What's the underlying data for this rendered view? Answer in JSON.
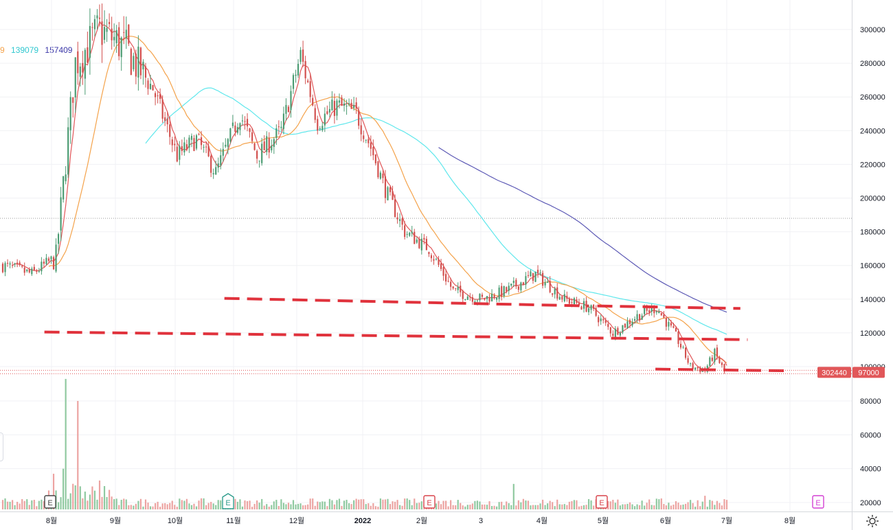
{
  "colors": {
    "up": "#26a69a",
    "down": "#ef5350",
    "up_body": "#4c9c73",
    "down_body": "#d2504e",
    "vol_up": "#8fc9a0",
    "vol_down": "#eca3a1",
    "ma_short": "#e15759",
    "ma_mid": "#f4a24a",
    "ma_long": "#5ee7ec",
    "ma_xlong": "#5c59b5",
    "support": "#e0323c"
  },
  "legend": {
    "partial": "9",
    "ma_mid_value": "139079",
    "ma_long_value": "157409"
  },
  "price_badges": {
    "left": "302440",
    "right": "97000"
  },
  "chart_data": {
    "type": "candlestick",
    "yaxis": {
      "ticks": [
        "300000",
        "280000",
        "260000",
        "240000",
        "220000",
        "200000",
        "180000",
        "160000",
        "140000",
        "120000",
        "100000"
      ],
      "range": [
        94000,
        318000
      ]
    },
    "volume_axis": {
      "ticks": [
        "80000",
        "60000",
        "40000",
        "20000"
      ],
      "range": [
        15000,
        95000
      ]
    },
    "xaxis": {
      "labels": [
        "8월",
        "9월",
        "10월",
        "11월",
        "12월",
        "2022",
        "2월",
        "3",
        "4월",
        "5월",
        "6월",
        "7월",
        "8월"
      ]
    },
    "reference_price": 188000,
    "current_price": 97000,
    "anchors": [
      {
        "i": 0,
        "p": 160000
      },
      {
        "i": 12,
        "p": 155000
      },
      {
        "i": 22,
        "p": 165000
      },
      {
        "i": 30,
        "p": 280000
      },
      {
        "i": 40,
        "p": 300000
      },
      {
        "i": 50,
        "p": 290000
      },
      {
        "i": 62,
        "p": 265000
      },
      {
        "i": 72,
        "p": 225000
      },
      {
        "i": 80,
        "p": 235000
      },
      {
        "i": 88,
        "p": 215000
      },
      {
        "i": 98,
        "p": 250000
      },
      {
        "i": 105,
        "p": 225000
      },
      {
        "i": 115,
        "p": 240000
      },
      {
        "i": 123,
        "p": 285000
      },
      {
        "i": 130,
        "p": 245000
      },
      {
        "i": 138,
        "p": 255000
      },
      {
        "i": 146,
        "p": 250000
      },
      {
        "i": 152,
        "p": 230000
      },
      {
        "i": 158,
        "p": 205000
      },
      {
        "i": 166,
        "p": 180000
      },
      {
        "i": 176,
        "p": 170000
      },
      {
        "i": 186,
        "p": 145000
      },
      {
        "i": 198,
        "p": 140000
      },
      {
        "i": 208,
        "p": 145000
      },
      {
        "i": 220,
        "p": 155000
      },
      {
        "i": 232,
        "p": 140000
      },
      {
        "i": 242,
        "p": 135000
      },
      {
        "i": 252,
        "p": 120000
      },
      {
        "i": 262,
        "p": 130000
      },
      {
        "i": 270,
        "p": 135000
      },
      {
        "i": 278,
        "p": 118000
      },
      {
        "i": 284,
        "p": 100000
      },
      {
        "i": 290,
        "p": 98000
      },
      {
        "i": 294,
        "p": 108000
      },
      {
        "i": 298,
        "p": 97000
      }
    ],
    "support_lines": [
      {
        "x0": 0.055,
        "p0": 120500,
        "x1": 0.922,
        "p1": 116000
      },
      {
        "x0": 0.278,
        "p0": 140500,
        "x1": 0.725,
        "p1": 136000
      },
      {
        "x0": 0.74,
        "p0": 136000,
        "x1": 0.913,
        "p1": 134500
      },
      {
        "x0": 0.812,
        "p0": 98500,
        "x1": 0.975,
        "p1": 97500
      }
    ],
    "volume_spikes": [
      {
        "i": 26,
        "v": 93000
      },
      {
        "i": 31,
        "v": 80000
      },
      {
        "i": 21,
        "v": 37000
      },
      {
        "i": 25,
        "v": 40000
      },
      {
        "i": 40,
        "v": 33000
      },
      {
        "i": 211,
        "v": 31000
      },
      {
        "i": 290,
        "v": 24000
      }
    ],
    "event_markers": [
      {
        "i": 17,
        "label": "E",
        "kind": "past"
      },
      {
        "i": 85,
        "label": "E",
        "kind": "div"
      },
      {
        "i": 163,
        "label": "E",
        "kind": "earn"
      },
      {
        "i": 232,
        "label": "E",
        "kind": "earn"
      },
      {
        "i": 322,
        "label": "E",
        "kind": "future"
      }
    ]
  }
}
